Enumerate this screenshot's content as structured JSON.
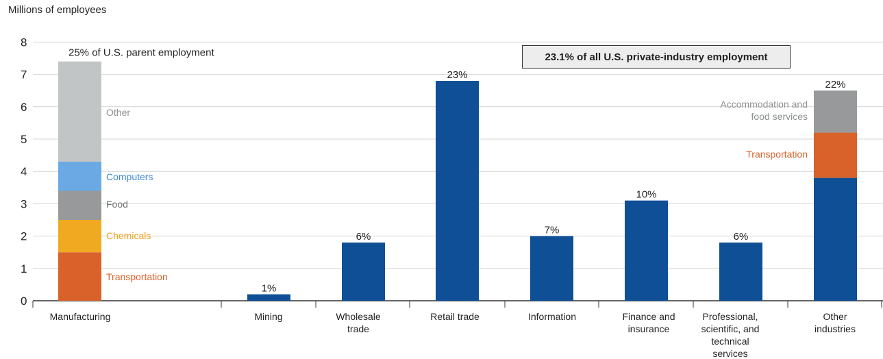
{
  "chart_data": {
    "type": "bar",
    "ylabel": "Millions of employees",
    "ylim": [
      0,
      8
    ],
    "yticks": [
      0,
      1,
      2,
      3,
      4,
      5,
      6,
      7,
      8
    ],
    "grid": true,
    "annotation_box": "23.1% of all U.S. private-industry employment",
    "categories": [
      "Manufacturing",
      "Mining",
      "Wholesale trade",
      "Retail trade",
      "Information",
      "Finance and insurance",
      "Professional, scientific, and technical services",
      "Other industries"
    ],
    "category_labels": [
      [
        "Manufacturing"
      ],
      [
        "Mining"
      ],
      [
        "Wholesale",
        "trade"
      ],
      [
        "Retail trade"
      ],
      [
        "Information"
      ],
      [
        "Finance and",
        "insurance"
      ],
      [
        "Professional,",
        "scientific, and",
        "technical",
        "services"
      ],
      [
        "Other",
        "industries"
      ]
    ],
    "bars": [
      {
        "category": "Manufacturing",
        "top_label": "25% of U.S. parent employment",
        "segments": [
          {
            "name": "Transportation",
            "value": 1.5,
            "color": "#D9622B"
          },
          {
            "name": "Chemicals",
            "value": 1.0,
            "color": "#F0AA22"
          },
          {
            "name": "Food",
            "value": 0.9,
            "color": "#97999B"
          },
          {
            "name": "Computers",
            "value": 0.9,
            "color": "#6AA9E4"
          },
          {
            "name": "Other",
            "value": 3.1,
            "color": "#C2C5C6"
          }
        ]
      },
      {
        "category": "Mining",
        "top_label": "1%",
        "segments": [
          {
            "value": 0.2,
            "color": "#0F4F96"
          }
        ]
      },
      {
        "category": "Wholesale trade",
        "top_label": "6%",
        "segments": [
          {
            "value": 1.8,
            "color": "#0F4F96"
          }
        ]
      },
      {
        "category": "Retail trade",
        "top_label": "23%",
        "segments": [
          {
            "value": 6.8,
            "color": "#0F4F96"
          }
        ]
      },
      {
        "category": "Information",
        "top_label": "7%",
        "segments": [
          {
            "value": 2.0,
            "color": "#0F4F96"
          }
        ]
      },
      {
        "category": "Finance and insurance",
        "top_label": "10%",
        "segments": [
          {
            "value": 3.1,
            "color": "#0F4F96"
          }
        ]
      },
      {
        "category": "Professional, scientific, and technical services",
        "top_label": "6%",
        "segments": [
          {
            "value": 1.8,
            "color": "#0F4F96"
          }
        ]
      },
      {
        "category": "Other industries",
        "top_label": "22%",
        "segments": [
          {
            "value": 3.8,
            "color": "#0F4F96"
          },
          {
            "name": "Transportation",
            "value": 1.4,
            "color": "#D9622B"
          },
          {
            "name": "Accommodation and food services",
            "value": 1.3,
            "color": "#97999B"
          }
        ]
      }
    ],
    "segment_label_colors": {
      "Other": "#8E9193",
      "Computers": "#3F88D4",
      "Food": "#6E7072",
      "Chemicals": "#EDA21E",
      "Transportation": "#D9622B",
      "Accommodation and food services": "#8E9193"
    }
  }
}
